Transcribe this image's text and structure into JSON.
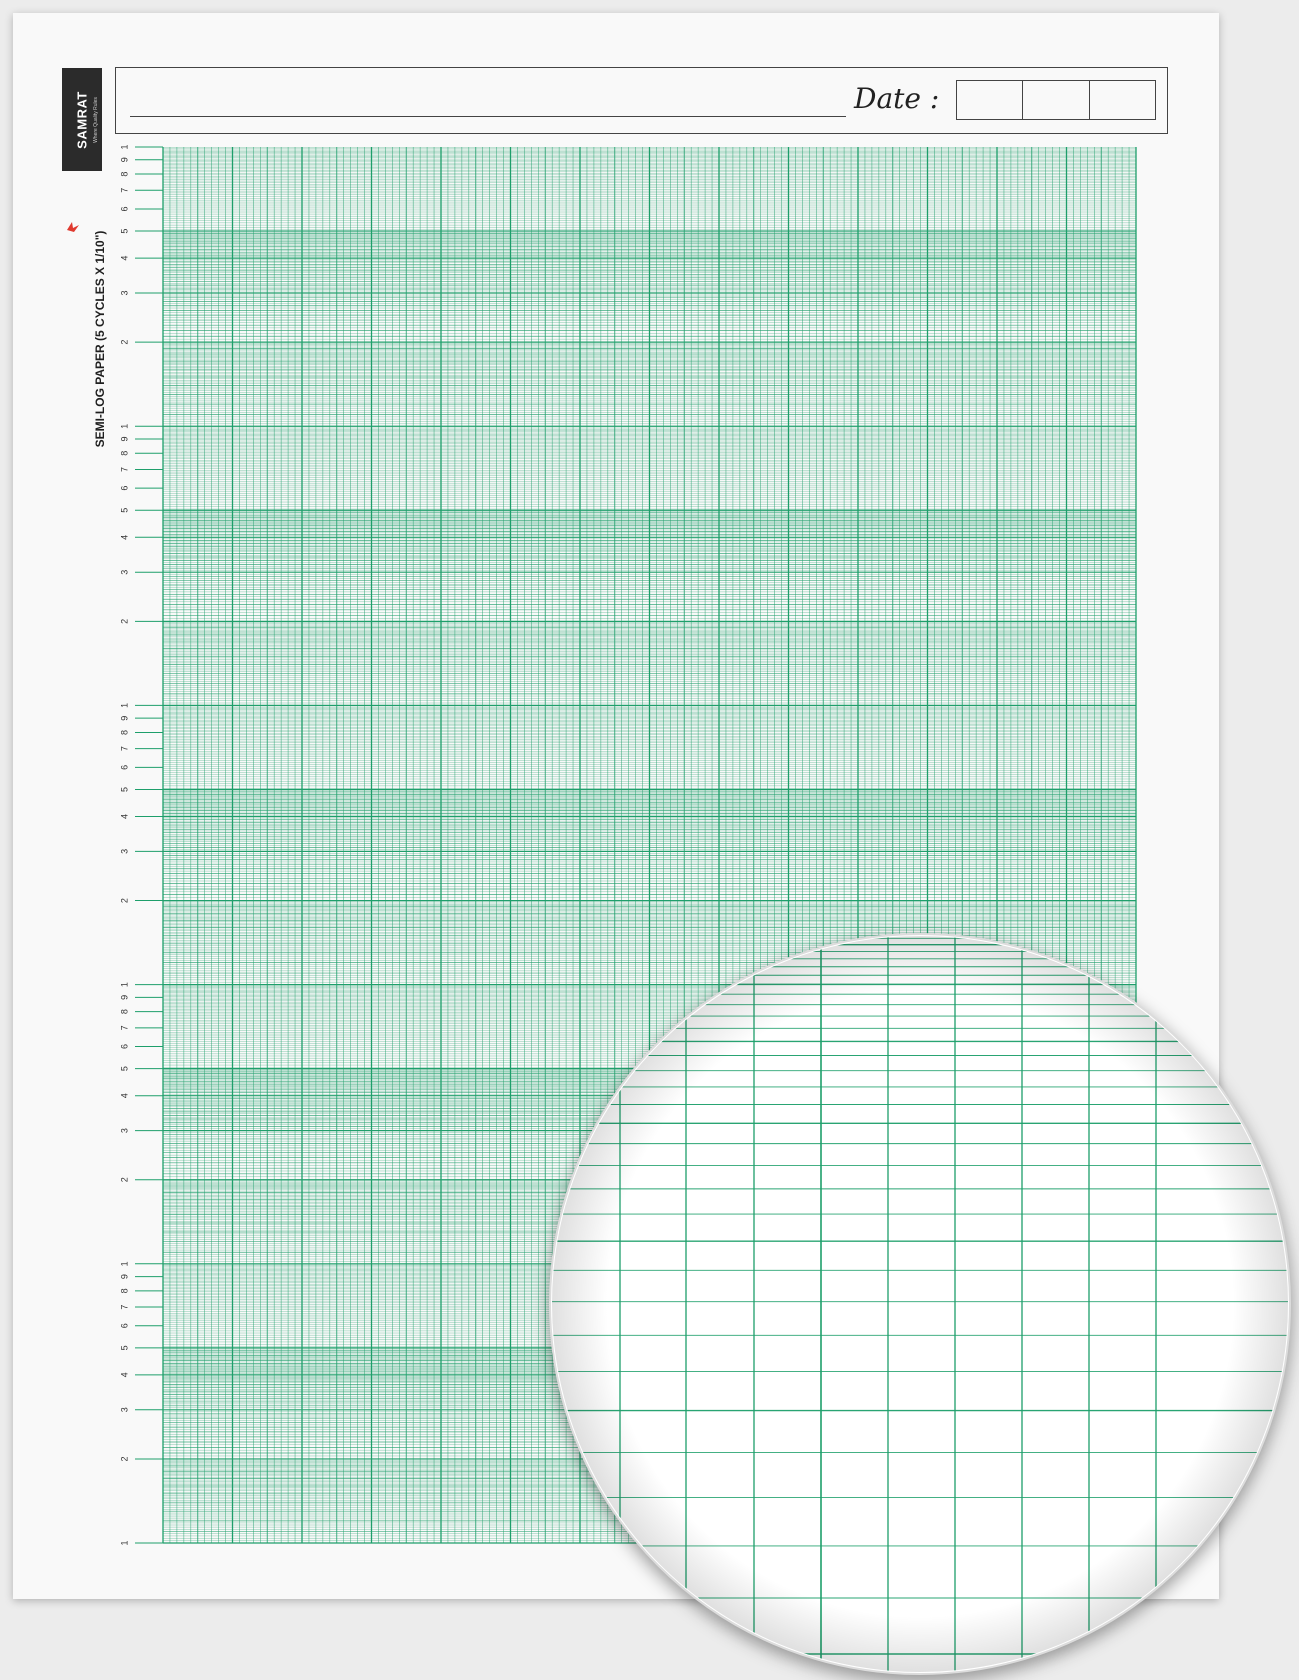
{
  "brand": {
    "name": "SAMRAT",
    "tagline": "Where Quality Rules"
  },
  "paper_title": "SEMI-LOG PAPER (5 CYCLES X 1/10\")",
  "date_label": "Date :",
  "date_fields": [
    "",
    "",
    ""
  ],
  "log_axis": {
    "cycles": 5,
    "labels": [
      "1",
      "2",
      "3",
      "4",
      "5",
      "6",
      "7",
      "8",
      "9",
      "1"
    ]
  },
  "linear_axis": {
    "division": "1/10\""
  },
  "colors": {
    "grid": "#1e9f6b",
    "paper": "#f9f9f9",
    "background": "#ececec"
  },
  "magnifier": {
    "shown": true,
    "icon": "magnified-grid-detail"
  }
}
